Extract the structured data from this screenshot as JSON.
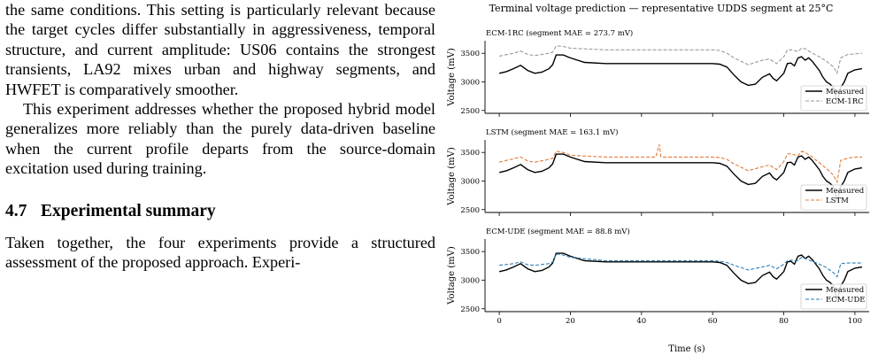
{
  "body_text": {
    "para1": "the same conditions. This setting is particularly relevant because the target cycles differ substantially in aggressiveness, temporal structure, and current amplitude: US06 contains the strongest transients, LA92 mixes urban and highway segments, and HWFET is comparatively smoother.",
    "para2": "This experiment addresses whether the proposed hybrid model generalizes more reliably than the purely data-driven baseline when the current profile departs from the source-domain excitation used during training.",
    "section_number": "4.7",
    "section_title": "Experimental summary",
    "para3": "Taken together, the four experiments provide a structured assessment of the proposed approach. Experi-"
  },
  "figure": {
    "title": "Terminal voltage prediction — representative UDDS segment at 25°C",
    "xlabel": "Time (s)",
    "ylabel": "Voltage (mV)"
  },
  "chart_data": [
    {
      "type": "line",
      "title": "ECM-1RC  (segment MAE = 273.7 mV)",
      "xlim": [
        -4,
        104
      ],
      "ylim": [
        2450,
        3720
      ],
      "xticks": [
        0,
        20,
        40,
        60,
        80,
        100
      ],
      "yticks": [
        2500,
        3000,
        3500
      ],
      "legend": "bottom-right",
      "series": [
        {
          "name": "Measured",
          "color": "#000000",
          "dash": "solid",
          "x": [
            0,
            2,
            4,
            6,
            8,
            10,
            12,
            14,
            15,
            16,
            18,
            20,
            24,
            30,
            40,
            50,
            60,
            62,
            64,
            66,
            68,
            70,
            72,
            74,
            76,
            77,
            78,
            80,
            81,
            82,
            83,
            84,
            85,
            86,
            87,
            88,
            90,
            91,
            92,
            93,
            94,
            95,
            96,
            97,
            98,
            100,
            102
          ],
          "y": [
            3150,
            3180,
            3230,
            3290,
            3200,
            3150,
            3170,
            3230,
            3300,
            3470,
            3470,
            3420,
            3340,
            3320,
            3320,
            3320,
            3320,
            3310,
            3260,
            3120,
            3000,
            2940,
            2960,
            3080,
            3140,
            3060,
            3020,
            3150,
            3320,
            3330,
            3280,
            3420,
            3440,
            3380,
            3420,
            3360,
            3200,
            3080,
            3000,
            2960,
            2900,
            2650,
            2900,
            3000,
            3150,
            3210,
            3230
          ]
        },
        {
          "name": "ECM-1RC",
          "color": "#999999",
          "dash": "dashed",
          "x": [
            0,
            4,
            6,
            8,
            10,
            14,
            15,
            16,
            18,
            20,
            30,
            40,
            50,
            60,
            62,
            64,
            66,
            70,
            74,
            76,
            78,
            80,
            81,
            82,
            84,
            85,
            86,
            88,
            90,
            92,
            94,
            95,
            96,
            98,
            100,
            102
          ],
          "y": [
            3450,
            3500,
            3540,
            3480,
            3460,
            3500,
            3520,
            3630,
            3620,
            3590,
            3560,
            3560,
            3560,
            3560,
            3550,
            3500,
            3420,
            3300,
            3380,
            3400,
            3320,
            3440,
            3560,
            3560,
            3530,
            3590,
            3580,
            3500,
            3440,
            3360,
            3260,
            3150,
            3420,
            3480,
            3490,
            3500
          ]
        }
      ]
    },
    {
      "type": "line",
      "title": "LSTM  (segment MAE = 163.1 mV)",
      "xlim": [
        -4,
        104
      ],
      "ylim": [
        2450,
        3720
      ],
      "xticks": [
        0,
        20,
        40,
        60,
        80,
        100
      ],
      "yticks": [
        2500,
        3000,
        3500
      ],
      "legend": "bottom-right",
      "series": [
        {
          "name": "Measured",
          "color": "#000000",
          "dash": "solid",
          "x": [
            0,
            2,
            4,
            6,
            8,
            10,
            12,
            14,
            15,
            16,
            18,
            20,
            24,
            30,
            40,
            50,
            60,
            62,
            64,
            66,
            68,
            70,
            72,
            74,
            76,
            77,
            78,
            80,
            81,
            82,
            83,
            84,
            85,
            86,
            87,
            88,
            90,
            91,
            92,
            93,
            94,
            95,
            96,
            97,
            98,
            100,
            102
          ],
          "y": [
            3150,
            3180,
            3230,
            3290,
            3200,
            3150,
            3170,
            3230,
            3300,
            3470,
            3470,
            3420,
            3340,
            3320,
            3320,
            3320,
            3320,
            3310,
            3260,
            3120,
            3000,
            2940,
            2960,
            3080,
            3140,
            3060,
            3020,
            3150,
            3320,
            3330,
            3280,
            3420,
            3440,
            3380,
            3420,
            3360,
            3200,
            3080,
            3000,
            2960,
            2900,
            2650,
            2900,
            3000,
            3150,
            3210,
            3230
          ]
        },
        {
          "name": "LSTM",
          "color": "#e07b39",
          "dash": "dashed",
          "x": [
            0,
            4,
            6,
            8,
            10,
            14,
            15,
            16,
            18,
            20,
            30,
            44,
            45,
            45.5,
            46,
            50,
            60,
            62,
            64,
            66,
            70,
            74,
            76,
            78,
            80,
            81,
            82,
            84,
            85,
            86,
            88,
            90,
            92,
            94,
            95,
            96,
            98,
            100,
            102
          ],
          "y": [
            3330,
            3390,
            3420,
            3350,
            3330,
            3380,
            3400,
            3520,
            3500,
            3450,
            3420,
            3420,
            3640,
            3420,
            3420,
            3420,
            3420,
            3410,
            3380,
            3300,
            3180,
            3250,
            3280,
            3200,
            3340,
            3470,
            3480,
            3440,
            3520,
            3500,
            3420,
            3320,
            3220,
            3100,
            2980,
            3360,
            3400,
            3420,
            3420
          ]
        }
      ]
    },
    {
      "type": "line",
      "title": "ECM-UDE  (segment MAE = 88.8 mV)",
      "xlim": [
        -4,
        104
      ],
      "ylim": [
        2450,
        3720
      ],
      "xticks": [
        0,
        20,
        40,
        60,
        80,
        100
      ],
      "yticks": [
        2500,
        3000,
        3500
      ],
      "legend": "bottom-right",
      "series": [
        {
          "name": "Measured",
          "color": "#000000",
          "dash": "solid",
          "x": [
            0,
            2,
            4,
            6,
            8,
            10,
            12,
            14,
            15,
            16,
            18,
            20,
            24,
            30,
            40,
            50,
            60,
            62,
            64,
            66,
            68,
            70,
            72,
            74,
            76,
            77,
            78,
            80,
            81,
            82,
            83,
            84,
            85,
            86,
            87,
            88,
            90,
            91,
            92,
            93,
            94,
            95,
            96,
            97,
            98,
            100,
            102
          ],
          "y": [
            3150,
            3180,
            3230,
            3290,
            3200,
            3150,
            3170,
            3230,
            3300,
            3470,
            3470,
            3420,
            3340,
            3320,
            3320,
            3320,
            3320,
            3310,
            3260,
            3120,
            3000,
            2940,
            2960,
            3080,
            3140,
            3060,
            3020,
            3150,
            3320,
            3330,
            3280,
            3420,
            3440,
            3380,
            3420,
            3360,
            3200,
            3080,
            3000,
            2960,
            2900,
            2650,
            2900,
            3000,
            3150,
            3210,
            3230
          ]
        },
        {
          "name": "ECM-UDE",
          "color": "#2f7fb5",
          "dash": "dashed",
          "x": [
            0,
            4,
            6,
            8,
            10,
            14,
            15,
            16,
            18,
            20,
            30,
            40,
            50,
            60,
            62,
            64,
            66,
            70,
            74,
            76,
            78,
            80,
            81,
            82,
            84,
            85,
            86,
            88,
            90,
            92,
            94,
            95,
            96,
            98,
            100,
            102
          ],
          "y": [
            3260,
            3290,
            3320,
            3270,
            3260,
            3290,
            3320,
            3460,
            3440,
            3400,
            3340,
            3340,
            3340,
            3340,
            3330,
            3310,
            3260,
            3180,
            3230,
            3260,
            3200,
            3280,
            3340,
            3350,
            3340,
            3400,
            3380,
            3330,
            3280,
            3220,
            3130,
            3060,
            3290,
            3300,
            3300,
            3300
          ]
        }
      ]
    }
  ]
}
